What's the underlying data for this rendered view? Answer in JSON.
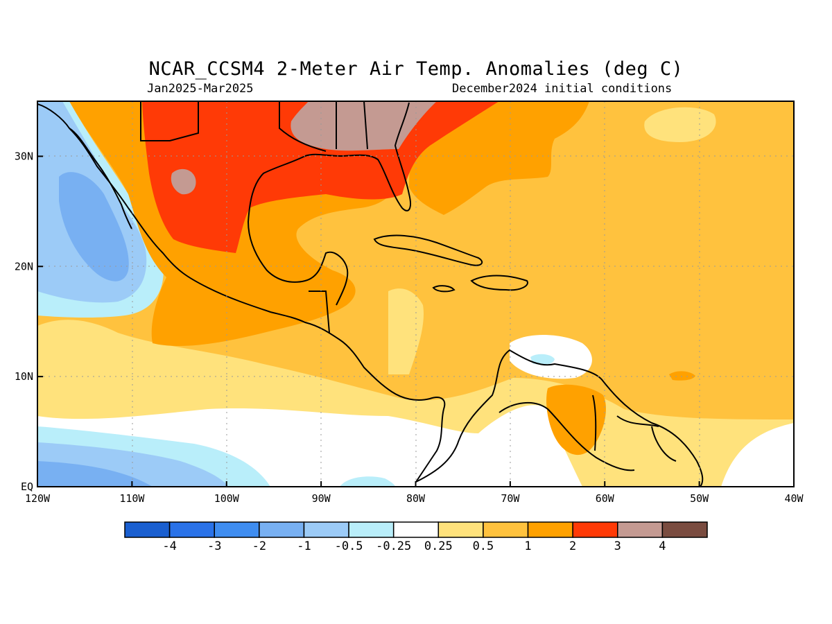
{
  "title": "NCAR_CCSM4 2-Meter Air Temp. Anomalies (deg C)",
  "subtitle_left": "Jan2025-Mar2025",
  "subtitle_right": "December2024 initial conditions",
  "axes": {
    "lon_ticks": [
      "120W",
      "110W",
      "100W",
      "90W",
      "80W",
      "70W",
      "60W",
      "50W",
      "40W"
    ],
    "lat_ticks": [
      "EQ",
      "10N",
      "20N",
      "30N"
    ],
    "lon_range": [
      -120,
      -40
    ],
    "lat_range": [
      0,
      35
    ],
    "grid": true
  },
  "colorbar": {
    "labels": [
      "-4",
      "-3",
      "-2",
      "-1",
      "-0.5",
      "-0.25",
      "0.25",
      "0.5",
      "1",
      "2",
      "3",
      "4"
    ],
    "colors": [
      "#1a5fd0",
      "#2a72e8",
      "#3f8df0",
      "#78b0f2",
      "#9ccbf7",
      "#b9eefa",
      "#ffffff",
      "#ffe27c",
      "#ffc23e",
      "#ffa100",
      "#ff3a06",
      "#c49a92",
      "#7a4c40"
    ]
  },
  "palette": {
    "neg4": "#1a5fd0",
    "neg3": "#2a72e8",
    "neg2": "#3f8df0",
    "neg1": "#78b0f2",
    "neg05": "#9ccbf7",
    "neg025": "#b9eefa",
    "zero": "#ffffff",
    "pos025": "#ffe27c",
    "pos05": "#ffc23e",
    "pos1": "#ffa100",
    "pos2": "#ff3a06",
    "pos3": "#c49a92",
    "pos4": "#7a4c40"
  }
}
